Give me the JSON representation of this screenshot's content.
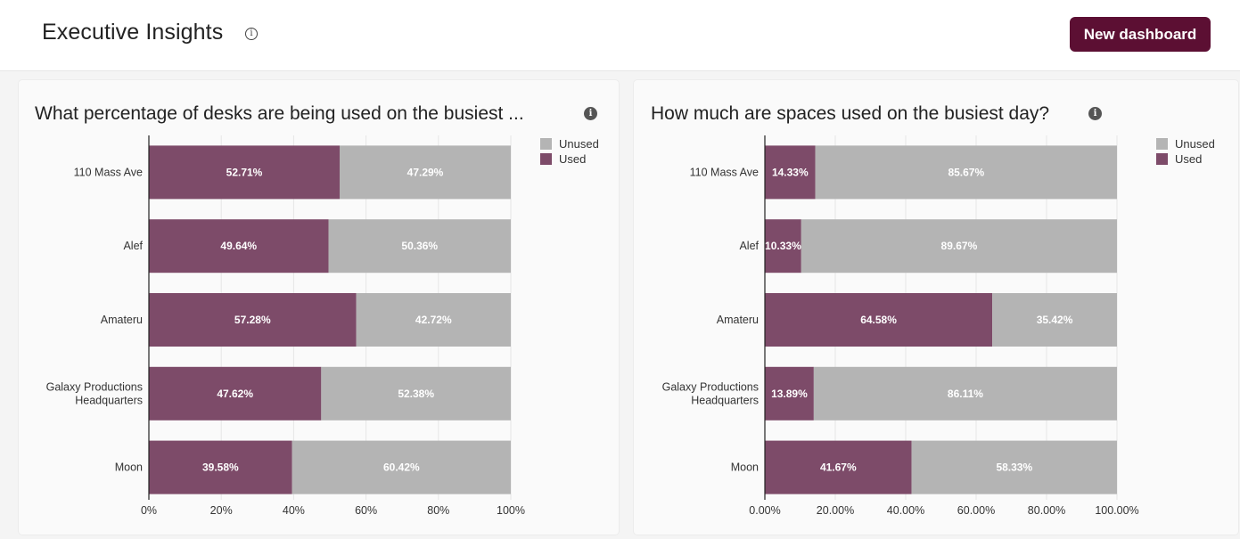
{
  "header": {
    "title": "Executive Insights",
    "info_icon": "info-circle-icon",
    "new_button_label": "New dashboard"
  },
  "colors": {
    "used": "#7d4b69",
    "unused": "#b4b4b4",
    "accent": "#5c0f33"
  },
  "chart_data": [
    {
      "type": "bar",
      "orientation": "horizontal",
      "stacked": true,
      "title": "What percentage of desks are being used on the busiest ...",
      "categories": [
        "110 Mass Ave",
        "Alef",
        "Amateru",
        "Galaxy Productions Headquarters",
        "Moon"
      ],
      "series": [
        {
          "name": "Used",
          "values": [
            52.71,
            49.64,
            57.28,
            47.62,
            39.58
          ]
        },
        {
          "name": "Unused",
          "values": [
            47.29,
            50.36,
            42.72,
            52.38,
            60.42
          ]
        }
      ],
      "data_labels": {
        "Used": [
          "52.71%",
          "49.64%",
          "57.28%",
          "47.62%",
          "39.58%"
        ],
        "Unused": [
          "47.29%",
          "50.36%",
          "42.72%",
          "52.38%",
          "60.42%"
        ]
      },
      "xlim": [
        0,
        100
      ],
      "xticks": [
        0,
        20,
        40,
        60,
        80,
        100
      ],
      "xtick_labels": [
        "0%",
        "20%",
        "40%",
        "60%",
        "80%",
        "100%"
      ],
      "legend": [
        "Unused",
        "Used"
      ],
      "legend_position": "top-right",
      "grid": true
    },
    {
      "type": "bar",
      "orientation": "horizontal",
      "stacked": true,
      "title": "How much are spaces used on the busiest day?",
      "categories": [
        "110 Mass Ave",
        "Alef",
        "Amateru",
        "Galaxy Productions Headquarters",
        "Moon"
      ],
      "series": [
        {
          "name": "Used",
          "values": [
            14.33,
            10.33,
            64.58,
            13.89,
            41.67
          ]
        },
        {
          "name": "Unused",
          "values": [
            85.67,
            89.67,
            35.42,
            86.11,
            58.33
          ]
        }
      ],
      "data_labels": {
        "Used": [
          "14.33%",
          "10.33%",
          "64.58%",
          "13.89%",
          "41.67%"
        ],
        "Unused": [
          "85.67%",
          "89.67%",
          "35.42%",
          "86.11%",
          "58.33%"
        ]
      },
      "xlim": [
        0,
        100
      ],
      "xticks": [
        0,
        20,
        40,
        60,
        80,
        100
      ],
      "xtick_labels": [
        "0.00%",
        "20.00%",
        "40.00%",
        "60.00%",
        "80.00%",
        "100.00%"
      ],
      "legend": [
        "Unused",
        "Used"
      ],
      "legend_position": "top-right",
      "grid": true
    }
  ]
}
